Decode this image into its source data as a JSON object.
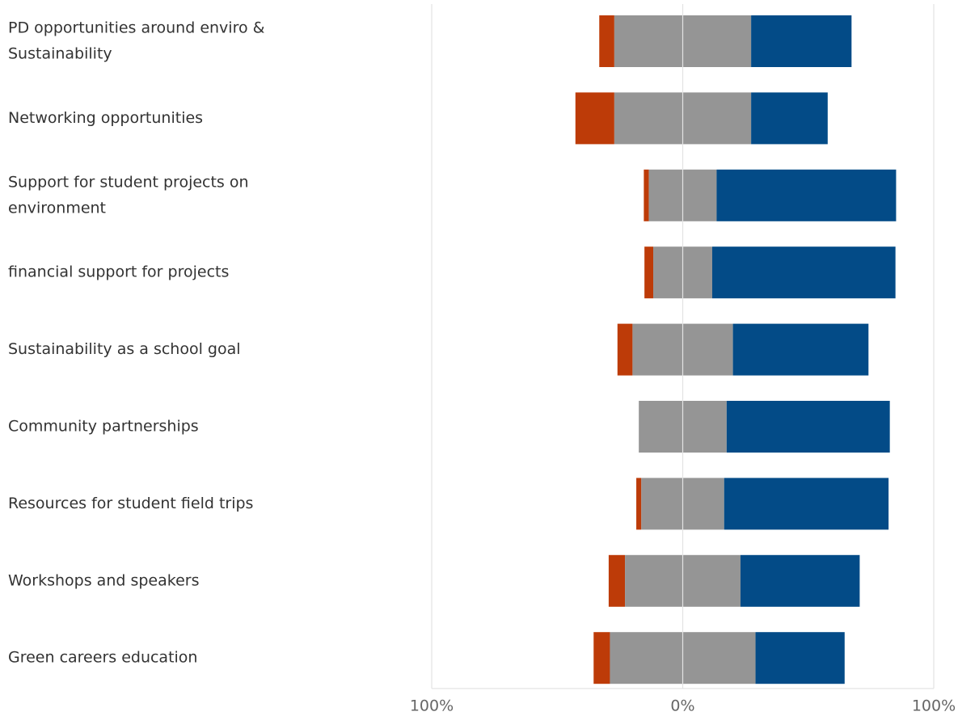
{
  "chart_data": {
    "type": "bar",
    "orientation": "horizontal",
    "stacked": true,
    "diverging": true,
    "title": "",
    "xlabel": "",
    "ylabel": "",
    "xlim": [
      -100,
      100
    ],
    "x_ticks": [
      -100,
      0,
      100
    ],
    "x_tick_labels": [
      "100%",
      "0%",
      "100%"
    ],
    "grid": true,
    "legend": "none",
    "categories": [
      [
        "PD opportunities around enviro &",
        "Sustainability"
      ],
      [
        "Networking opportunities"
      ],
      [
        "Support for student projects on",
        "environment"
      ],
      [
        "financial support for projects"
      ],
      [
        "Sustainability as a school goal"
      ],
      [
        "Community partnerships"
      ],
      [
        "Resources for student field trips"
      ],
      [
        "Workshops and speakers"
      ],
      [
        "Green careers education"
      ]
    ],
    "series": [
      {
        "color": "#BD3B08",
        "side": "negative",
        "values": [
          6,
          15.5,
          2,
          3.5,
          6,
          0,
          2,
          6.5,
          6.5
        ]
      },
      {
        "color": "#959595",
        "side": "center",
        "values": [
          54.5,
          54.5,
          27,
          23.5,
          40,
          35,
          33,
          46,
          58
        ]
      },
      {
        "color": "#034B87",
        "side": "positive",
        "values": [
          40,
          30.5,
          71.5,
          73,
          54,
          65,
          65.5,
          47.5,
          35.5
        ]
      }
    ]
  }
}
